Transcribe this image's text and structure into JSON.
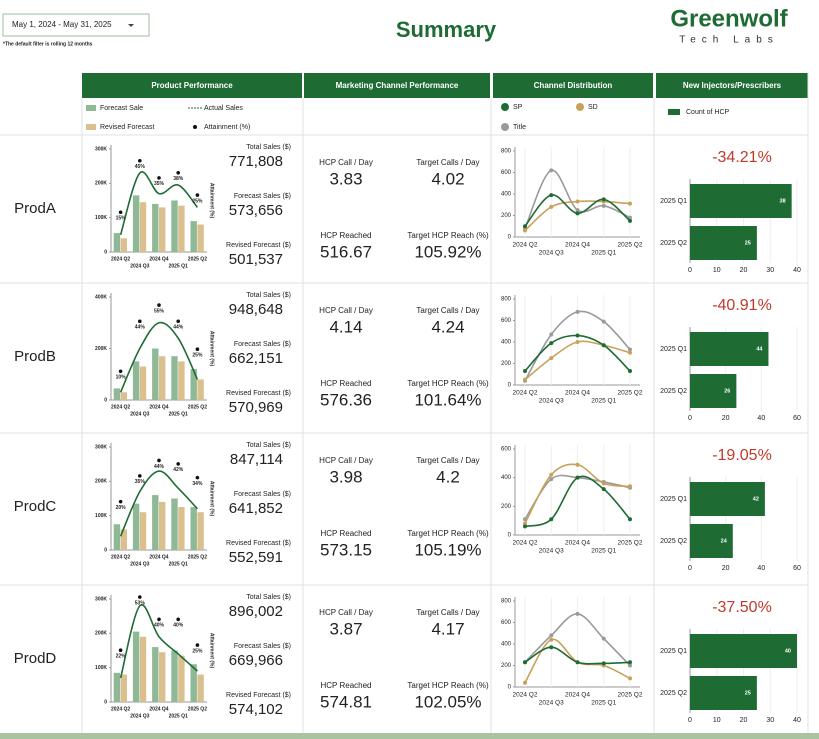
{
  "header": {
    "date_filter": "May 1, 2024 - May 31, 2025",
    "note": "*The default filter is rolling 12 months",
    "title": "Summary",
    "logo": "Greenwolf",
    "logo_sub": "Tech Labs"
  },
  "columns": [
    "Product Performance",
    "Marketing Channel Performance",
    "Channel Distribution",
    "New Injectors/Prescribers"
  ],
  "rows": [
    {
      "product": "ProdA",
      "kpis": [
        {
          "label": "Total Sales ($)",
          "value": "771,808"
        },
        {
          "label": "Forecast Sales ($)",
          "value": "573,656"
        },
        {
          "label": "Revised Forecast ($)",
          "value": "501,537"
        }
      ],
      "marketing": [
        {
          "label": "HCP Call / Day",
          "value": "3.83"
        },
        {
          "label": "Target Calls / Day",
          "value": "4.02"
        },
        {
          "label": "HCP Reached",
          "value": "516.67"
        },
        {
          "label": "Target HCP Reach (%)",
          "value": "105.92%"
        }
      ],
      "change": "-34.21%"
    },
    {
      "product": "ProdB",
      "kpis": [
        {
          "label": "Total Sales ($)",
          "value": "948,648"
        },
        {
          "label": "Forecast Sales ($)",
          "value": "662,151"
        },
        {
          "label": "Revised Forecast ($)",
          "value": "570,969"
        }
      ],
      "marketing": [
        {
          "label": "HCP Call / Day",
          "value": "4.14"
        },
        {
          "label": "Target Calls / Day",
          "value": "4.24"
        },
        {
          "label": "HCP Reached",
          "value": "576.36"
        },
        {
          "label": "Target HCP Reach (%)",
          "value": "101.64%"
        }
      ],
      "change": "-40.91%"
    },
    {
      "product": "ProdC",
      "kpis": [
        {
          "label": "Total Sales ($)",
          "value": "847,114"
        },
        {
          "label": "Forecast Sales ($)",
          "value": "641,852"
        },
        {
          "label": "Revised Forecast ($)",
          "value": "552,591"
        }
      ],
      "marketing": [
        {
          "label": "HCP Call / Day",
          "value": "3.98"
        },
        {
          "label": "Target Calls / Day",
          "value": "4.2"
        },
        {
          "label": "HCP Reached",
          "value": "573.15"
        },
        {
          "label": "Target HCP Reach (%)",
          "value": "105.19%"
        }
      ],
      "change": "-19.05%"
    },
    {
      "product": "ProdD",
      "kpis": [
        {
          "label": "Total Sales ($)",
          "value": "896,002"
        },
        {
          "label": "Forecast Sales ($)",
          "value": "669,966"
        },
        {
          "label": "Revised Forecast ($)",
          "value": "574,102"
        }
      ],
      "marketing": [
        {
          "label": "HCP Call / Day",
          "value": "3.87"
        },
        {
          "label": "Target Calls / Day",
          "value": "4.17"
        },
        {
          "label": "HCP Reached",
          "value": "574.81"
        },
        {
          "label": "Target HCP Reach (%)",
          "value": "102.05%"
        }
      ],
      "change": "-37.50%"
    }
  ],
  "chart_data": [
    {
      "type": "combo",
      "categories": [
        "2024 Q2",
        "2024 Q3",
        "2024 Q4",
        "2025 Q1",
        "2025 Q2"
      ],
      "series": [
        {
          "name": "Forecast Sale",
          "type": "bar",
          "color": "#8fb996",
          "values": [
            55000,
            165000,
            140000,
            150000,
            90000
          ]
        },
        {
          "name": "Revised Forecast",
          "type": "bar",
          "color": "#d9c08e",
          "values": [
            40000,
            145000,
            130000,
            135000,
            80000
          ]
        },
        {
          "name": "Actual Sales",
          "type": "line",
          "color": "#1e6b34",
          "values": [
            50000,
            230000,
            170000,
            195000,
            130000
          ]
        },
        {
          "name": "Attainment (%)",
          "type": "dot",
          "axis": "y2",
          "color": "#111111",
          "values": [
            15,
            45,
            35,
            38,
            25
          ],
          "value_labels": [
            "15%",
            "45%",
            "35%",
            "38%",
            "25%"
          ]
        }
      ],
      "ylim": [
        0,
        300000
      ],
      "yticks": [
        0,
        {
          "value": 100000,
          "label": "100K"
        },
        {
          "value": 200000,
          "label": "200K"
        },
        {
          "value": 300000,
          "label": "300K"
        }
      ],
      "y2lim": [
        0,
        60
      ],
      "y2label": "Attainment (%)"
    },
    {
      "type": "line",
      "categories": [
        "2024 Q2",
        "2024 Q3",
        "2024 Q4",
        "2025 Q1",
        "2025 Q2"
      ],
      "series": [
        {
          "name": "SP",
          "color": "#1e6b34",
          "values": [
            100,
            390,
            220,
            350,
            150
          ]
        },
        {
          "name": "SD",
          "color": "#c9a15a",
          "values": [
            60,
            280,
            330,
            330,
            310
          ]
        },
        {
          "name": "Title",
          "color": "#9a9a9a",
          "values": [
            80,
            620,
            250,
            290,
            180
          ]
        }
      ],
      "ylim": [
        0,
        800
      ],
      "yticks": [
        0,
        200,
        400,
        600,
        800
      ]
    },
    {
      "type": "hbar",
      "categories": [
        "2025 Q1",
        "2025 Q2"
      ],
      "series": [
        {
          "name": "Count of HCP",
          "color": "#1e6b34",
          "values": [
            38,
            25
          ]
        }
      ],
      "xlim": [
        0,
        40
      ],
      "xticks": [
        0,
        10,
        20,
        30,
        40
      ],
      "grid": true
    },
    {
      "type": "combo",
      "categories": [
        "2024 Q2",
        "2024 Q3",
        "2024 Q4",
        "2025 Q1",
        "2025 Q2"
      ],
      "series": [
        {
          "name": "Forecast Sale",
          "type": "bar",
          "color": "#8fb996",
          "values": [
            45000,
            150000,
            200000,
            170000,
            120000
          ]
        },
        {
          "name": "Revised Forecast",
          "type": "bar",
          "color": "#d9c08e",
          "values": [
            30000,
            130000,
            170000,
            150000,
            80000
          ]
        },
        {
          "name": "Actual Sales",
          "type": "line",
          "color": "#1e6b34",
          "values": [
            30000,
            200000,
            300000,
            240000,
            80000
          ]
        },
        {
          "name": "Attainment (%)",
          "type": "dot",
          "axis": "y2",
          "color": "#111111",
          "values": [
            10,
            44,
            55,
            44,
            25
          ],
          "value_labels": [
            "10%",
            "44%",
            "55%",
            "44%",
            "25%"
          ]
        }
      ],
      "ylim": [
        0,
        400000
      ],
      "yticks": [
        0,
        {
          "value": 200000,
          "label": "200K"
        },
        {
          "value": 400000,
          "label": "400K"
        }
      ],
      "y2lim": [
        0,
        70
      ],
      "y2label": "Attainment (%)"
    },
    {
      "type": "line",
      "categories": [
        "2024 Q2",
        "2024 Q3",
        "2024 Q4",
        "2025 Q1",
        "2025 Q2"
      ],
      "series": [
        {
          "name": "SP",
          "color": "#1e6b34",
          "values": [
            130,
            390,
            460,
            370,
            130
          ]
        },
        {
          "name": "SD",
          "color": "#c9a15a",
          "values": [
            50,
            250,
            400,
            370,
            300
          ]
        },
        {
          "name": "Title",
          "color": "#9a9a9a",
          "values": [
            40,
            470,
            680,
            590,
            330
          ]
        }
      ],
      "ylim": [
        0,
        800
      ],
      "yticks": [
        0,
        200,
        400,
        600,
        800
      ]
    },
    {
      "type": "hbar",
      "categories": [
        "2025 Q1",
        "2025 Q2"
      ],
      "series": [
        {
          "name": "Count of HCP",
          "color": "#1e6b34",
          "values": [
            44,
            26
          ]
        }
      ],
      "xlim": [
        0,
        60
      ],
      "xticks": [
        0,
        20,
        40,
        60
      ],
      "grid": true
    },
    {
      "type": "combo",
      "categories": [
        "2024 Q2",
        "2024 Q3",
        "2024 Q4",
        "2025 Q1",
        "2025 Q2"
      ],
      "series": [
        {
          "name": "Forecast Sale",
          "type": "bar",
          "color": "#8fb996",
          "values": [
            75000,
            135000,
            160000,
            150000,
            125000
          ]
        },
        {
          "name": "Revised Forecast",
          "type": "bar",
          "color": "#d9c08e",
          "values": [
            60000,
            110000,
            140000,
            125000,
            110000
          ]
        },
        {
          "name": "Actual Sales",
          "type": "line",
          "color": "#1e6b34",
          "values": [
            40000,
            170000,
            230000,
            180000,
            120000
          ]
        },
        {
          "name": "Attainment (%)",
          "type": "dot",
          "axis": "y2",
          "color": "#111111",
          "values": [
            20,
            35,
            44,
            42,
            34
          ],
          "value_labels": [
            "20%",
            "35%",
            "44%",
            "42%",
            "34%"
          ]
        }
      ],
      "ylim": [
        0,
        300000
      ],
      "yticks": [
        0,
        {
          "value": 100000,
          "label": "100K"
        },
        {
          "value": 200000,
          "label": "200K"
        },
        {
          "value": 300000,
          "label": "300K"
        }
      ],
      "y2lim": [
        0,
        60
      ],
      "y2label": "Attainment (%)"
    },
    {
      "type": "line",
      "categories": [
        "2024 Q2",
        "2024 Q3",
        "2024 Q4",
        "2025 Q1",
        "2025 Q2"
      ],
      "series": [
        {
          "name": "SP",
          "color": "#1e6b34",
          "values": [
            60,
            110,
            400,
            320,
            110
          ]
        },
        {
          "name": "SD",
          "color": "#c9a15a",
          "values": [
            80,
            420,
            490,
            360,
            340
          ]
        },
        {
          "name": "Title",
          "color": "#9a9a9a",
          "values": [
            110,
            390,
            400,
            370,
            330
          ]
        }
      ],
      "ylim": [
        0,
        600
      ],
      "yticks": [
        0,
        200,
        400,
        600
      ]
    },
    {
      "type": "hbar",
      "categories": [
        "2025 Q1",
        "2025 Q2"
      ],
      "series": [
        {
          "name": "Count of HCP",
          "color": "#1e6b34",
          "values": [
            42,
            24
          ]
        }
      ],
      "xlim": [
        0,
        60
      ],
      "xticks": [
        0,
        20,
        40,
        60
      ],
      "grid": true
    },
    {
      "type": "combo",
      "categories": [
        "2024 Q2",
        "2024 Q3",
        "2024 Q4",
        "2025 Q1",
        "2025 Q2"
      ],
      "series": [
        {
          "name": "Forecast Sale",
          "type": "bar",
          "color": "#8fb996",
          "values": [
            85000,
            205000,
            160000,
            150000,
            110000
          ]
        },
        {
          "name": "Revised Forecast",
          "type": "bar",
          "color": "#d9c08e",
          "values": [
            80000,
            190000,
            145000,
            135000,
            80000
          ]
        },
        {
          "name": "Actual Sales",
          "type": "line",
          "color": "#1e6b34",
          "values": [
            70000,
            280000,
            190000,
            140000,
            90000
          ]
        },
        {
          "name": "Attainment (%)",
          "type": "dot",
          "axis": "y2",
          "color": "#111111",
          "values": [
            22,
            53,
            40,
            40,
            25
          ],
          "value_labels": [
            "22%",
            "53%",
            "40%",
            "40%",
            "25%"
          ]
        }
      ],
      "ylim": [
        0,
        300000
      ],
      "yticks": [
        0,
        {
          "value": 100000,
          "label": "100K"
        },
        {
          "value": 200000,
          "label": "200K"
        },
        {
          "value": 300000,
          "label": "300K"
        }
      ],
      "y2lim": [
        0,
        60
      ],
      "y2label": "Attainment (%)"
    },
    {
      "type": "line",
      "categories": [
        "2024 Q2",
        "2024 Q3",
        "2024 Q4",
        "2025 Q1",
        "2025 Q2"
      ],
      "series": [
        {
          "name": "SP",
          "color": "#1e6b34",
          "values": [
            230,
            370,
            230,
            220,
            230
          ]
        },
        {
          "name": "SD",
          "color": "#c9a15a",
          "values": [
            40,
            440,
            230,
            200,
            80
          ]
        },
        {
          "name": "Title",
          "color": "#9a9a9a",
          "values": [
            230,
            480,
            680,
            450,
            200
          ]
        }
      ],
      "ylim": [
        0,
        800
      ],
      "yticks": [
        0,
        200,
        400,
        600,
        800
      ]
    },
    {
      "type": "hbar",
      "categories": [
        "2025 Q1",
        "2025 Q2"
      ],
      "series": [
        {
          "name": "Count of HCP",
          "color": "#1e6b34",
          "values": [
            40,
            25
          ]
        }
      ],
      "xlim": [
        0,
        40
      ],
      "xticks": [
        0,
        10,
        20,
        30,
        40
      ],
      "grid": true
    }
  ]
}
